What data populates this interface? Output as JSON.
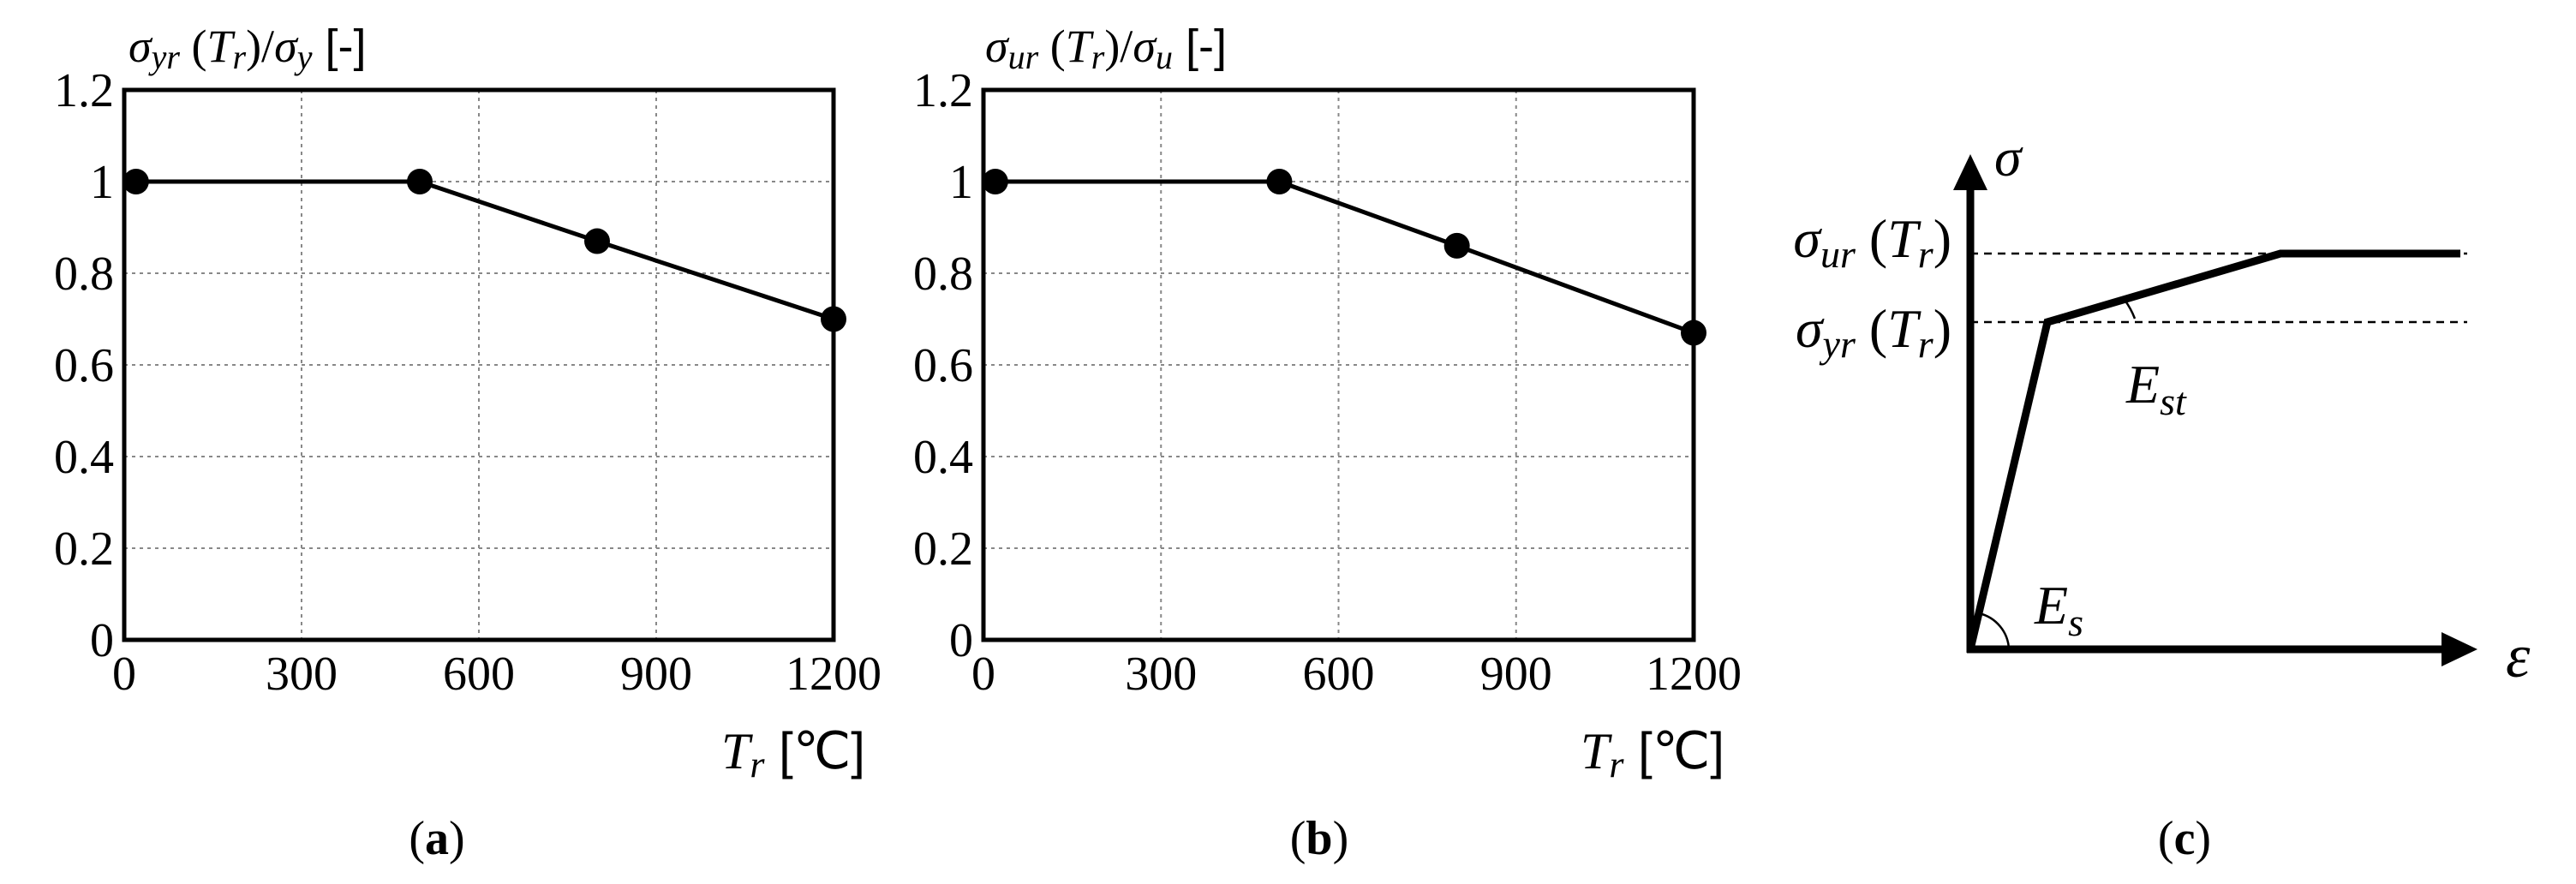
{
  "figure": {
    "panels": [
      {
        "id": "a",
        "ylabel": {
          "sigma": "σ",
          "sub1": "yr",
          "open": " (",
          "T": "T",
          "sub2": "r",
          "close": ")/",
          "sigma2": "σ",
          "sub3": "y",
          "unit": " [-]"
        },
        "xlabel": {
          "T": "T",
          "sub": "r",
          "unit": " [℃]"
        },
        "caption": {
          "open": "(",
          "letter": "a",
          "close": ")"
        }
      },
      {
        "id": "b",
        "ylabel": {
          "sigma": "σ",
          "sub1": "ur",
          "open": " (",
          "T": "T",
          "sub2": "r",
          "close": ")/",
          "sigma2": "σ",
          "sub3": "u",
          "unit": " [-]"
        },
        "xlabel": {
          "T": "T",
          "sub": "r",
          "unit": " [℃]"
        },
        "caption": {
          "open": "(",
          "letter": "b",
          "close": ")"
        }
      }
    ],
    "panel_c": {
      "y_axis": "σ",
      "x_axis": "ε",
      "sigma_ur": {
        "sigma": "σ",
        "sub": "ur",
        "open": " (",
        "T": "T",
        "sub2": "r",
        "close": ")"
      },
      "sigma_yr": {
        "sigma": "σ",
        "sub": "yr",
        "open": " (",
        "T": "T",
        "sub2": "r",
        "close": ")"
      },
      "E_st": {
        "E": "E",
        "sub": "st"
      },
      "E_s": {
        "E": "E",
        "sub": "s"
      },
      "caption": {
        "open": "(",
        "letter": "c",
        "close": ")"
      }
    }
  },
  "chart_data": [
    {
      "type": "line",
      "panel": "a",
      "title": "",
      "xlabel": "Tr [℃]",
      "ylabel": "σyr (Tr)/σy [-]",
      "x": [
        20,
        500,
        800,
        1200
      ],
      "series": [
        {
          "values": [
            1.0,
            1.0,
            0.87,
            0.7
          ]
        }
      ],
      "xlim": [
        0,
        1200
      ],
      "ylim": [
        0,
        1.2
      ],
      "xticks": [
        0,
        300,
        600,
        900,
        1200
      ],
      "yticks": [
        0,
        0.2,
        0.4,
        0.6,
        0.8,
        1,
        1.2
      ],
      "xtick_labels": [
        "0",
        "300",
        "600",
        "900",
        "1200"
      ],
      "ytick_labels": [
        "0",
        "0.2",
        "0.4",
        "0.6",
        "0.8",
        "1",
        "1.2"
      ],
      "grid": true,
      "markers": "filled-circle",
      "color": "#000000"
    },
    {
      "type": "line",
      "panel": "b",
      "title": "",
      "xlabel": "Tr [℃]",
      "ylabel": "σur (Tr)/σu [-]",
      "x": [
        20,
        500,
        800,
        1200
      ],
      "series": [
        {
          "values": [
            1.0,
            1.0,
            0.86,
            0.67
          ]
        }
      ],
      "xlim": [
        0,
        1200
      ],
      "ylim": [
        0,
        1.2
      ],
      "xticks": [
        0,
        300,
        600,
        900,
        1200
      ],
      "yticks": [
        0,
        0.2,
        0.4,
        0.6,
        0.8,
        1,
        1.2
      ],
      "xtick_labels": [
        "0",
        "300",
        "600",
        "900",
        "1200"
      ],
      "ytick_labels": [
        "0",
        "0.2",
        "0.4",
        "0.6",
        "0.8",
        "1",
        "1.2"
      ],
      "grid": true,
      "markers": "filled-circle",
      "color": "#000000"
    }
  ]
}
